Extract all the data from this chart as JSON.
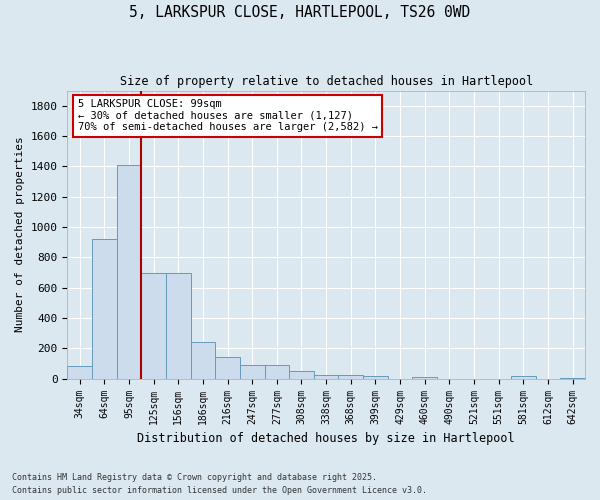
{
  "title_line1": "5, LARKSPUR CLOSE, HARTLEPOOL, TS26 0WD",
  "title_line2": "Size of property relative to detached houses in Hartlepool",
  "xlabel": "Distribution of detached houses by size in Hartlepool",
  "ylabel": "Number of detached properties",
  "categories": [
    "34sqm",
    "64sqm",
    "95sqm",
    "125sqm",
    "156sqm",
    "186sqm",
    "216sqm",
    "247sqm",
    "277sqm",
    "308sqm",
    "338sqm",
    "368sqm",
    "399sqm",
    "429sqm",
    "460sqm",
    "490sqm",
    "521sqm",
    "551sqm",
    "581sqm",
    "612sqm",
    "642sqm"
  ],
  "values": [
    85,
    920,
    1410,
    700,
    700,
    245,
    145,
    90,
    90,
    50,
    25,
    25,
    15,
    0,
    10,
    0,
    0,
    0,
    15,
    0,
    5
  ],
  "bar_color": "#ccdcec",
  "bar_edge_color": "#6699bb",
  "vline_color": "#aa0000",
  "annotation_box_text": "5 LARKSPUR CLOSE: 99sqm\n← 30% of detached houses are smaller (1,127)\n70% of semi-detached houses are larger (2,582) →",
  "annotation_box_edge_color": "#cc0000",
  "background_color": "#dce8f0",
  "grid_color": "#ffffff",
  "ylim": [
    0,
    1900
  ],
  "yticks": [
    0,
    200,
    400,
    600,
    800,
    1000,
    1200,
    1400,
    1600,
    1800
  ],
  "footer_line1": "Contains HM Land Registry data © Crown copyright and database right 2025.",
  "footer_line2": "Contains public sector information licensed under the Open Government Licence v3.0."
}
